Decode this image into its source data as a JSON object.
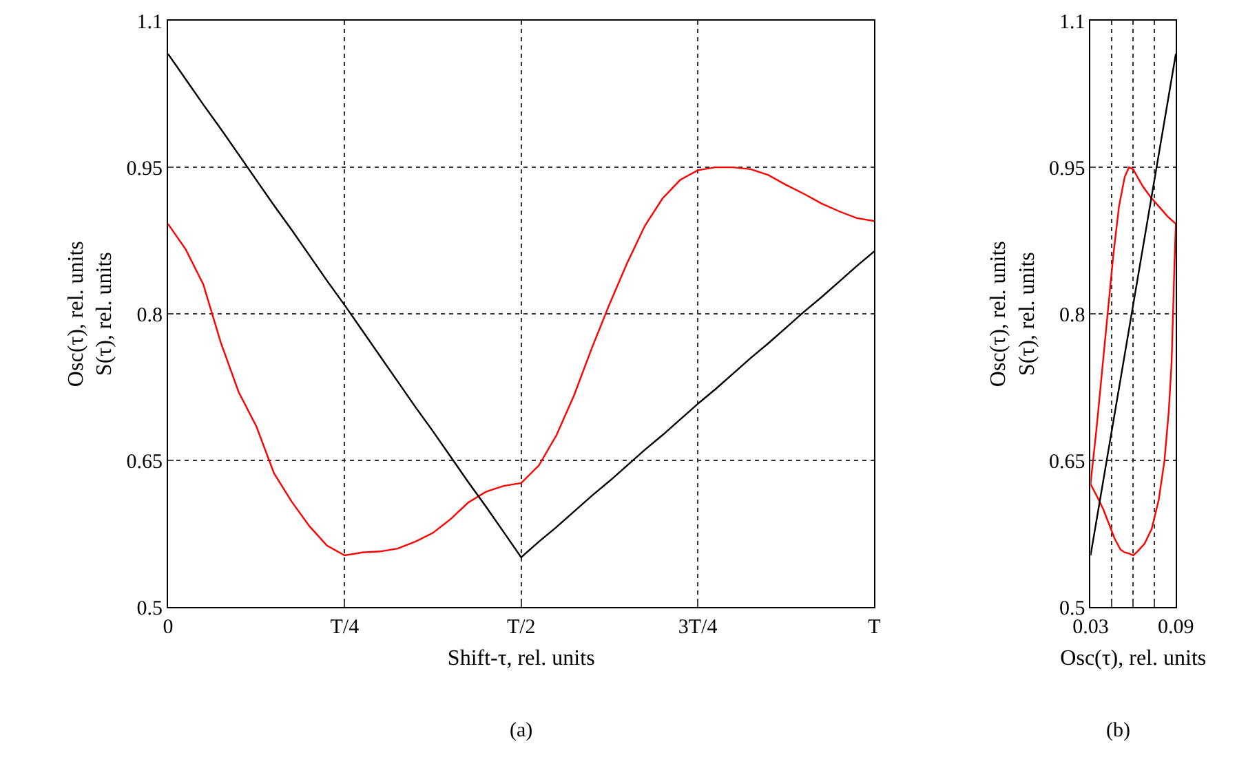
{
  "chart_data": [
    {
      "type": "line",
      "xlabel": "Shift-τ, rel. units",
      "ylabel": "Osc(τ), rel. units\nS(τ), rel. units",
      "annotations": [
        "(a)"
      ],
      "categories": [
        "0",
        null,
        null,
        null,
        null,
        null,
        null,
        null,
        null,
        null,
        "T/4",
        null,
        null,
        null,
        null,
        null,
        null,
        null,
        null,
        null,
        "T/2",
        null,
        null,
        null,
        null,
        null,
        null,
        null,
        null,
        null,
        "3T/4",
        null,
        null,
        null,
        null,
        null,
        null,
        null,
        null,
        null,
        "T"
      ],
      "ylim": [
        0.5,
        1.1
      ],
      "yticks": [
        0.5,
        0.65,
        0.8,
        0.95,
        1.1
      ],
      "grid": true,
      "line_style": "solid",
      "marker": "none",
      "series": [
        {
          "color": "#ff0000",
          "values": [
            0.892,
            0.866,
            0.83,
            0.77,
            0.72,
            0.685,
            0.637,
            0.608,
            0.583,
            0.563,
            0.553,
            0.556,
            0.557,
            0.56,
            0.567,
            0.576,
            0.59,
            0.607,
            0.618,
            0.624,
            0.627,
            0.645,
            0.676,
            0.717,
            0.765,
            0.81,
            0.852,
            0.89,
            0.918,
            0.937,
            0.947,
            0.95,
            0.95,
            0.948,
            0.942,
            0.932,
            0.923,
            0.913,
            0.905,
            0.898,
            0.895
          ]
        },
        {
          "color": "#000000",
          "values": [
            1.066,
            1.04,
            1.014,
            0.989,
            0.963,
            0.937,
            0.911,
            0.886,
            0.86,
            0.834,
            0.809,
            0.783,
            0.757,
            0.731,
            0.705,
            0.68,
            0.654,
            0.628,
            0.603,
            0.577,
            0.551,
            0.567,
            0.582,
            0.598,
            0.614,
            0.629,
            0.645,
            0.661,
            0.676,
            0.692,
            0.708,
            0.723,
            0.739,
            0.755,
            0.77,
            0.786,
            0.802,
            0.817,
            0.833,
            0.849,
            0.864
          ]
        }
      ]
    },
    {
      "type": "line",
      "xlabel": "Osc(τ), rel. units",
      "ylabel": "Osc(τ), rel. units\nS(τ), rel. units",
      "annotations": [
        "(b)"
      ],
      "xlim": [
        0.03,
        0.09
      ],
      "xticks": [
        0.03,
        {
          "value": 0.045,
          "label": null
        },
        {
          "value": 0.06,
          "label": null
        },
        {
          "value": 0.075,
          "label": null
        },
        0.09
      ],
      "ylim": [
        0.5,
        1.1
      ],
      "yticks": [
        0.5,
        0.65,
        0.8,
        0.95,
        1.1
      ],
      "grid": true,
      "line_style": "solid",
      "marker": "none",
      "series": [
        {
          "color": "#ff0000",
          "x": [
            0.03,
            0.031,
            0.034,
            0.038,
            0.042,
            0.046,
            0.05,
            0.054,
            0.057,
            0.06,
            0.063,
            0.067,
            0.072,
            0.078,
            0.084,
            0.09
          ],
          "values": [
            0.626,
            0.64,
            0.68,
            0.74,
            0.8,
            0.86,
            0.91,
            0.94,
            0.95,
            0.948,
            0.94,
            0.93,
            0.92,
            0.91,
            0.9,
            0.892
          ]
        },
        {
          "color": "#ff0000",
          "x": [
            0.03,
            0.035,
            0.039,
            0.043,
            0.047,
            0.051,
            0.054,
            0.057,
            0.06,
            0.063,
            0.068,
            0.073,
            0.078,
            0.082,
            0.085,
            0.087,
            0.088,
            0.089,
            0.09
          ],
          "values": [
            0.626,
            0.612,
            0.6,
            0.585,
            0.57,
            0.559,
            0.556,
            0.555,
            0.553,
            0.557,
            0.565,
            0.58,
            0.61,
            0.65,
            0.7,
            0.75,
            0.8,
            0.85,
            0.892
          ]
        },
        {
          "color": "#000000",
          "x": [
            0.03,
            0.09
          ],
          "values": [
            0.553,
            1.066
          ]
        }
      ]
    }
  ]
}
